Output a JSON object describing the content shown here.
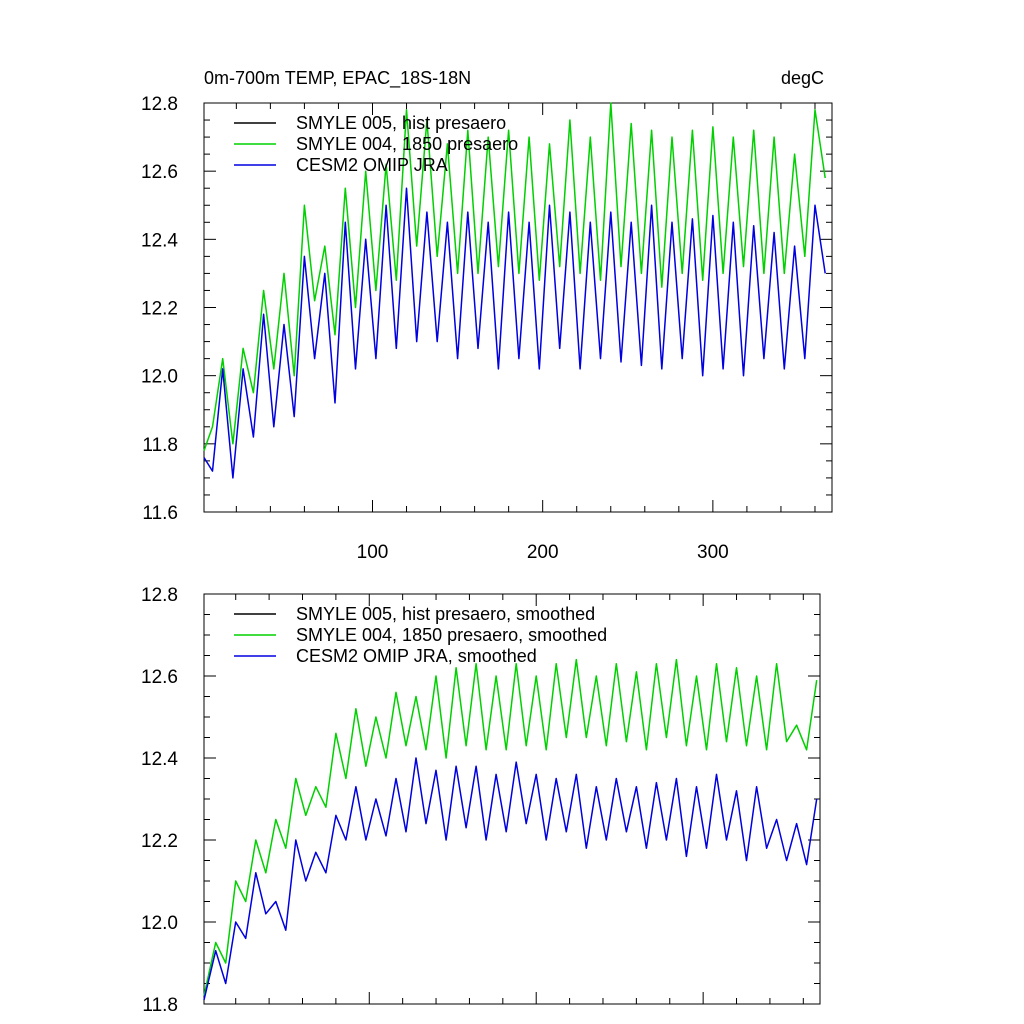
{
  "chart_data": [
    {
      "type": "line",
      "title": "0m-700m TEMP, EPAC_18S-18N",
      "units": "degC",
      "xlim": [
        1,
        370
      ],
      "ylim": [
        11.6,
        12.8
      ],
      "yticks": [
        "11.6",
        "11.8",
        "12.0",
        "12.2",
        "12.4",
        "12.6",
        "12.8"
      ],
      "xticks": [
        "100",
        "200",
        "300"
      ],
      "legend_position": "top-left",
      "series": [
        {
          "name": "SMYLE 005, hist presaero",
          "color": "#000000",
          "x": [],
          "values": []
        },
        {
          "name": "SMYLE 004, 1850 presaero",
          "color": "#00d000",
          "x": [
            1,
            6,
            12,
            18,
            24,
            30,
            36,
            42,
            48,
            54,
            60,
            66,
            72,
            78,
            84,
            90,
            96,
            102,
            108,
            114,
            120,
            126,
            132,
            138,
            144,
            150,
            156,
            162,
            168,
            174,
            180,
            186,
            192,
            198,
            204,
            210,
            216,
            222,
            228,
            234,
            240,
            246,
            252,
            258,
            264,
            270,
            276,
            282,
            288,
            294,
            300,
            306,
            312,
            318,
            324,
            330,
            336,
            342,
            348,
            354,
            360,
            366
          ],
          "values": [
            11.78,
            11.85,
            12.05,
            11.8,
            12.08,
            11.95,
            12.25,
            12.02,
            12.3,
            12.0,
            12.5,
            12.22,
            12.38,
            12.12,
            12.55,
            12.2,
            12.6,
            12.25,
            12.62,
            12.28,
            12.78,
            12.38,
            12.75,
            12.35,
            12.68,
            12.3,
            12.72,
            12.3,
            12.7,
            12.32,
            12.72,
            12.3,
            12.7,
            12.28,
            12.68,
            12.32,
            12.75,
            12.3,
            12.7,
            12.28,
            12.8,
            12.32,
            12.74,
            12.3,
            12.72,
            12.26,
            12.7,
            12.3,
            12.72,
            12.28,
            12.73,
            12.3,
            12.7,
            12.32,
            12.72,
            12.3,
            12.7,
            12.3,
            12.65,
            12.35,
            12.78,
            12.58
          ]
        },
        {
          "name": "CESM2 OMIP JRA",
          "color": "#0000e0",
          "x": [
            1,
            6,
            12,
            18,
            24,
            30,
            36,
            42,
            48,
            54,
            60,
            66,
            72,
            78,
            84,
            90,
            96,
            102,
            108,
            114,
            120,
            126,
            132,
            138,
            144,
            150,
            156,
            162,
            168,
            174,
            180,
            186,
            192,
            198,
            204,
            210,
            216,
            222,
            228,
            234,
            240,
            246,
            252,
            258,
            264,
            270,
            276,
            282,
            288,
            294,
            300,
            306,
            312,
            318,
            324,
            330,
            336,
            342,
            348,
            354,
            360,
            366
          ],
          "values": [
            11.76,
            11.72,
            12.02,
            11.7,
            12.02,
            11.82,
            12.18,
            11.85,
            12.15,
            11.88,
            12.35,
            12.05,
            12.3,
            11.92,
            12.45,
            12.02,
            12.4,
            12.05,
            12.5,
            12.08,
            12.55,
            12.1,
            12.48,
            12.1,
            12.45,
            12.05,
            12.48,
            12.08,
            12.45,
            12.02,
            12.48,
            12.05,
            12.45,
            12.02,
            12.5,
            12.08,
            12.48,
            12.02,
            12.45,
            12.05,
            12.48,
            12.04,
            12.45,
            12.03,
            12.5,
            12.02,
            12.45,
            12.05,
            12.46,
            12.0,
            12.47,
            12.02,
            12.45,
            12.0,
            12.44,
            12.05,
            12.42,
            12.02,
            12.38,
            12.05,
            12.5,
            12.3
          ]
        }
      ]
    },
    {
      "type": "line",
      "title": "",
      "xlim": [
        1,
        370
      ],
      "ylim": [
        11.8,
        12.8
      ],
      "yticks": [
        "11.8",
        "12.0",
        "12.2",
        "12.4",
        "12.6",
        "12.8"
      ],
      "legend_position": "top-left",
      "series": [
        {
          "name": "SMYLE 005, hist presaero, smoothed",
          "color": "#000000",
          "x": [],
          "values": []
        },
        {
          "name": "SMYLE 004, 1850 presaero, smoothed",
          "color": "#00d000",
          "x": [
            1,
            8,
            14,
            20,
            26,
            32,
            38,
            44,
            50,
            56,
            62,
            68,
            74,
            80,
            86,
            92,
            98,
            104,
            110,
            116,
            122,
            128,
            134,
            140,
            146,
            152,
            158,
            164,
            170,
            176,
            182,
            188,
            194,
            200,
            206,
            212,
            218,
            224,
            230,
            236,
            242,
            248,
            254,
            260,
            266,
            272,
            278,
            284,
            290,
            296,
            302,
            308,
            314,
            320,
            326,
            332,
            338,
            344,
            350,
            356,
            362,
            368
          ],
          "values": [
            11.82,
            11.95,
            11.9,
            12.1,
            12.05,
            12.2,
            12.12,
            12.25,
            12.18,
            12.35,
            12.26,
            12.33,
            12.28,
            12.46,
            12.35,
            12.52,
            12.38,
            12.5,
            12.4,
            12.56,
            12.43,
            12.55,
            12.42,
            12.6,
            12.4,
            12.62,
            12.43,
            12.63,
            12.42,
            12.6,
            12.42,
            12.63,
            12.43,
            12.6,
            12.42,
            12.63,
            12.45,
            12.64,
            12.45,
            12.6,
            12.43,
            12.63,
            12.44,
            12.61,
            12.42,
            12.63,
            12.45,
            12.64,
            12.43,
            12.6,
            12.42,
            12.63,
            12.44,
            12.62,
            12.43,
            12.6,
            12.42,
            12.63,
            12.44,
            12.48,
            12.42,
            12.59
          ]
        },
        {
          "name": "CESM2 OMIP JRA, smoothed",
          "color": "#0000e0",
          "x": [
            1,
            8,
            14,
            20,
            26,
            32,
            38,
            44,
            50,
            56,
            62,
            68,
            74,
            80,
            86,
            92,
            98,
            104,
            110,
            116,
            122,
            128,
            134,
            140,
            146,
            152,
            158,
            164,
            170,
            176,
            182,
            188,
            194,
            200,
            206,
            212,
            218,
            224,
            230,
            236,
            242,
            248,
            254,
            260,
            266,
            272,
            278,
            284,
            290,
            296,
            302,
            308,
            314,
            320,
            326,
            332,
            338,
            344,
            350,
            356,
            362,
            368
          ],
          "values": [
            11.81,
            11.93,
            11.85,
            12.0,
            11.96,
            12.12,
            12.02,
            12.05,
            11.98,
            12.2,
            12.1,
            12.17,
            12.12,
            12.26,
            12.2,
            12.33,
            12.2,
            12.3,
            12.21,
            12.35,
            12.22,
            12.4,
            12.24,
            12.37,
            12.2,
            12.38,
            12.23,
            12.38,
            12.2,
            12.36,
            12.22,
            12.39,
            12.24,
            12.36,
            12.2,
            12.35,
            12.22,
            12.36,
            12.18,
            12.33,
            12.2,
            12.35,
            12.22,
            12.33,
            12.18,
            12.34,
            12.2,
            12.35,
            12.16,
            12.33,
            12.18,
            12.36,
            12.2,
            12.32,
            12.15,
            12.33,
            12.18,
            12.25,
            12.15,
            12.24,
            12.14,
            12.3
          ]
        }
      ]
    }
  ]
}
